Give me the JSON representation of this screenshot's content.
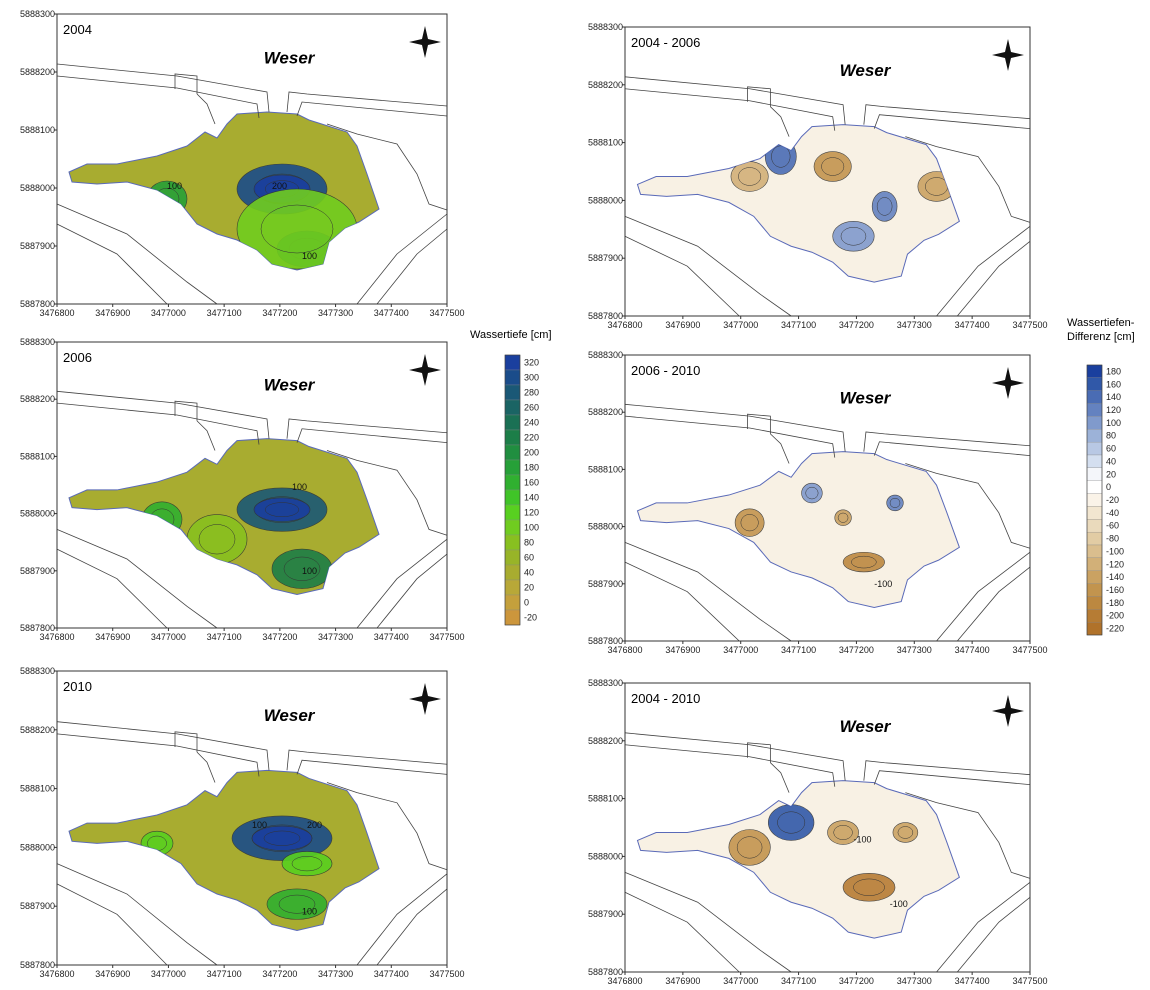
{
  "panels": [
    {
      "title": "2004",
      "river": "Weser",
      "contour_labels": [
        100,
        200,
        100
      ]
    },
    {
      "title": "2006",
      "river": "Weser",
      "contour_labels": [
        100,
        100
      ]
    },
    {
      "title": "2010",
      "river": "Weser",
      "contour_labels": [
        100,
        200,
        100
      ]
    },
    {
      "title": "2004 - 2006",
      "river": "Weser",
      "contour_labels": []
    },
    {
      "title": "2006 - 2010",
      "river": "Weser",
      "contour_labels": [
        -100
      ]
    },
    {
      "title": "2004 - 2010",
      "river": "Weser",
      "contour_labels": [
        -100,
        -100
      ]
    }
  ],
  "axes": {
    "xlim": [
      3476800,
      3477500
    ],
    "ylim": [
      5887800,
      5888300
    ],
    "xticks": [
      3476800,
      3476900,
      3477000,
      3477100,
      3477200,
      3477300,
      3477400,
      3477500
    ],
    "yticks": [
      5887800,
      5887900,
      5888000,
      5888100,
      5888200,
      5888300
    ]
  },
  "legends": [
    {
      "title_lines": [
        "Wassertiefe [cm]"
      ],
      "ticks": [
        320,
        300,
        280,
        260,
        240,
        220,
        200,
        180,
        160,
        140,
        120,
        100,
        80,
        60,
        40,
        20,
        0,
        -20
      ],
      "colors": [
        "#1a3f9e",
        "#1a4c8a",
        "#1a5876",
        "#1a6464",
        "#1a7054",
        "#1c7e48",
        "#208e40",
        "#26a038",
        "#30b030",
        "#40c428",
        "#58d020",
        "#70cc20",
        "#88c020",
        "#98b428",
        "#a8ac30",
        "#b8a838",
        "#c4a03c",
        "#cc963c"
      ]
    },
    {
      "title_lines": [
        "Wassertiefen-",
        "Differenz [cm]"
      ],
      "ticks": [
        180,
        160,
        140,
        120,
        100,
        80,
        60,
        40,
        20,
        0,
        -20,
        -40,
        -60,
        -80,
        -100,
        -120,
        -140,
        -160,
        -180,
        -200,
        -220
      ],
      "colors": [
        "#1a3f9e",
        "#3058a8",
        "#4a6cb4",
        "#6482c0",
        "#809acc",
        "#9cb2d8",
        "#b8c8e4",
        "#d4dff0",
        "#f4f6fa",
        "#ffffff",
        "#faf3e8",
        "#f2e6d0",
        "#eadabc",
        "#e2cca4",
        "#dabe8e",
        "#d2b078",
        "#caa262",
        "#c2944e",
        "#bc8840",
        "#b67c34",
        "#b0722a"
      ]
    }
  ]
}
